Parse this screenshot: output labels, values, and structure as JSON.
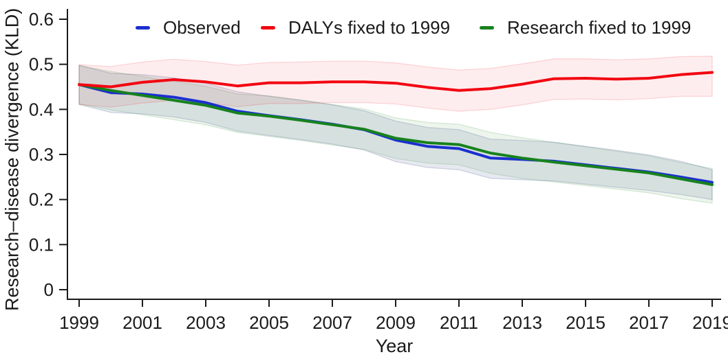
{
  "chart_data": {
    "type": "line",
    "title": "",
    "xlabel": "Year",
    "ylabel": "Research–disease divergence (KLD)",
    "xlim": [
      1999,
      2019
    ],
    "ylim": [
      0,
      0.6
    ],
    "xticks": [
      1999,
      2001,
      2003,
      2005,
      2007,
      2009,
      2011,
      2013,
      2015,
      2017,
      2019
    ],
    "yticks": [
      0,
      0.1,
      0.2,
      0.3,
      0.4,
      0.5,
      0.6
    ],
    "grid": false,
    "legend_position": "top",
    "background_color": "#ffffff",
    "axis_color": "#1a1a1a",
    "x": [
      1999,
      2000,
      2001,
      2002,
      2003,
      2004,
      2005,
      2006,
      2007,
      2008,
      2009,
      2010,
      2011,
      2012,
      2013,
      2014,
      2015,
      2016,
      2017,
      2018,
      2019
    ],
    "series": [
      {
        "name": "Observed",
        "color": "#1b2fd0",
        "band_fill": "rgba(85,105,150,0.15)",
        "band_stroke": "rgba(85,105,150,0.25)",
        "values": [
          0.455,
          0.437,
          0.434,
          0.427,
          0.415,
          0.396,
          0.386,
          0.377,
          0.367,
          0.355,
          0.332,
          0.318,
          0.313,
          0.292,
          0.289,
          0.285,
          0.277,
          0.269,
          0.261,
          0.25,
          0.238
        ],
        "band_upper": [
          0.498,
          0.48,
          0.477,
          0.47,
          0.458,
          0.439,
          0.429,
          0.42,
          0.41,
          0.397,
          0.374,
          0.36,
          0.355,
          0.334,
          0.331,
          0.327,
          0.318,
          0.309,
          0.299,
          0.285,
          0.266
        ],
        "band_lower": [
          0.411,
          0.393,
          0.39,
          0.383,
          0.371,
          0.352,
          0.342,
          0.333,
          0.323,
          0.31,
          0.284,
          0.271,
          0.266,
          0.247,
          0.244,
          0.241,
          0.234,
          0.227,
          0.22,
          0.211,
          0.2
        ]
      },
      {
        "name": "DALYs fixed to 1999",
        "color": "#f20511",
        "band_fill": "rgba(242,5,17,0.07)",
        "band_stroke": "rgba(242,5,17,0.15)",
        "values": [
          0.455,
          0.45,
          0.46,
          0.466,
          0.461,
          0.452,
          0.459,
          0.459,
          0.461,
          0.461,
          0.458,
          0.449,
          0.442,
          0.446,
          0.456,
          0.468,
          0.469,
          0.467,
          0.469,
          0.477,
          0.482
        ],
        "band_upper": [
          0.499,
          0.495,
          0.505,
          0.511,
          0.506,
          0.498,
          0.504,
          0.505,
          0.507,
          0.507,
          0.503,
          0.494,
          0.487,
          0.491,
          0.501,
          0.512,
          0.512,
          0.51,
          0.512,
          0.517,
          0.518
        ],
        "band_lower": [
          0.411,
          0.405,
          0.414,
          0.42,
          0.415,
          0.406,
          0.413,
          0.413,
          0.415,
          0.415,
          0.412,
          0.403,
          0.396,
          0.4,
          0.41,
          0.422,
          0.423,
          0.421,
          0.424,
          0.429,
          0.429
        ]
      },
      {
        "name": "Research fixed to 1999",
        "color": "#17821d",
        "band_fill": "rgba(23,130,29,0.08)",
        "band_stroke": "rgba(23,130,29,0.16)",
        "values": [
          0.455,
          0.442,
          0.431,
          0.42,
          0.409,
          0.392,
          0.385,
          0.376,
          0.366,
          0.356,
          0.336,
          0.326,
          0.322,
          0.303,
          0.292,
          0.283,
          0.275,
          0.267,
          0.259,
          0.246,
          0.233
        ],
        "band_upper": [
          0.497,
          0.484,
          0.473,
          0.462,
          0.451,
          0.434,
          0.43,
          0.421,
          0.411,
          0.401,
          0.381,
          0.371,
          0.367,
          0.349,
          0.337,
          0.327,
          0.317,
          0.307,
          0.297,
          0.282,
          0.269
        ],
        "band_lower": [
          0.412,
          0.399,
          0.388,
          0.377,
          0.366,
          0.349,
          0.34,
          0.331,
          0.321,
          0.311,
          0.291,
          0.281,
          0.277,
          0.258,
          0.247,
          0.239,
          0.231,
          0.223,
          0.215,
          0.202,
          0.192
        ]
      }
    ]
  }
}
